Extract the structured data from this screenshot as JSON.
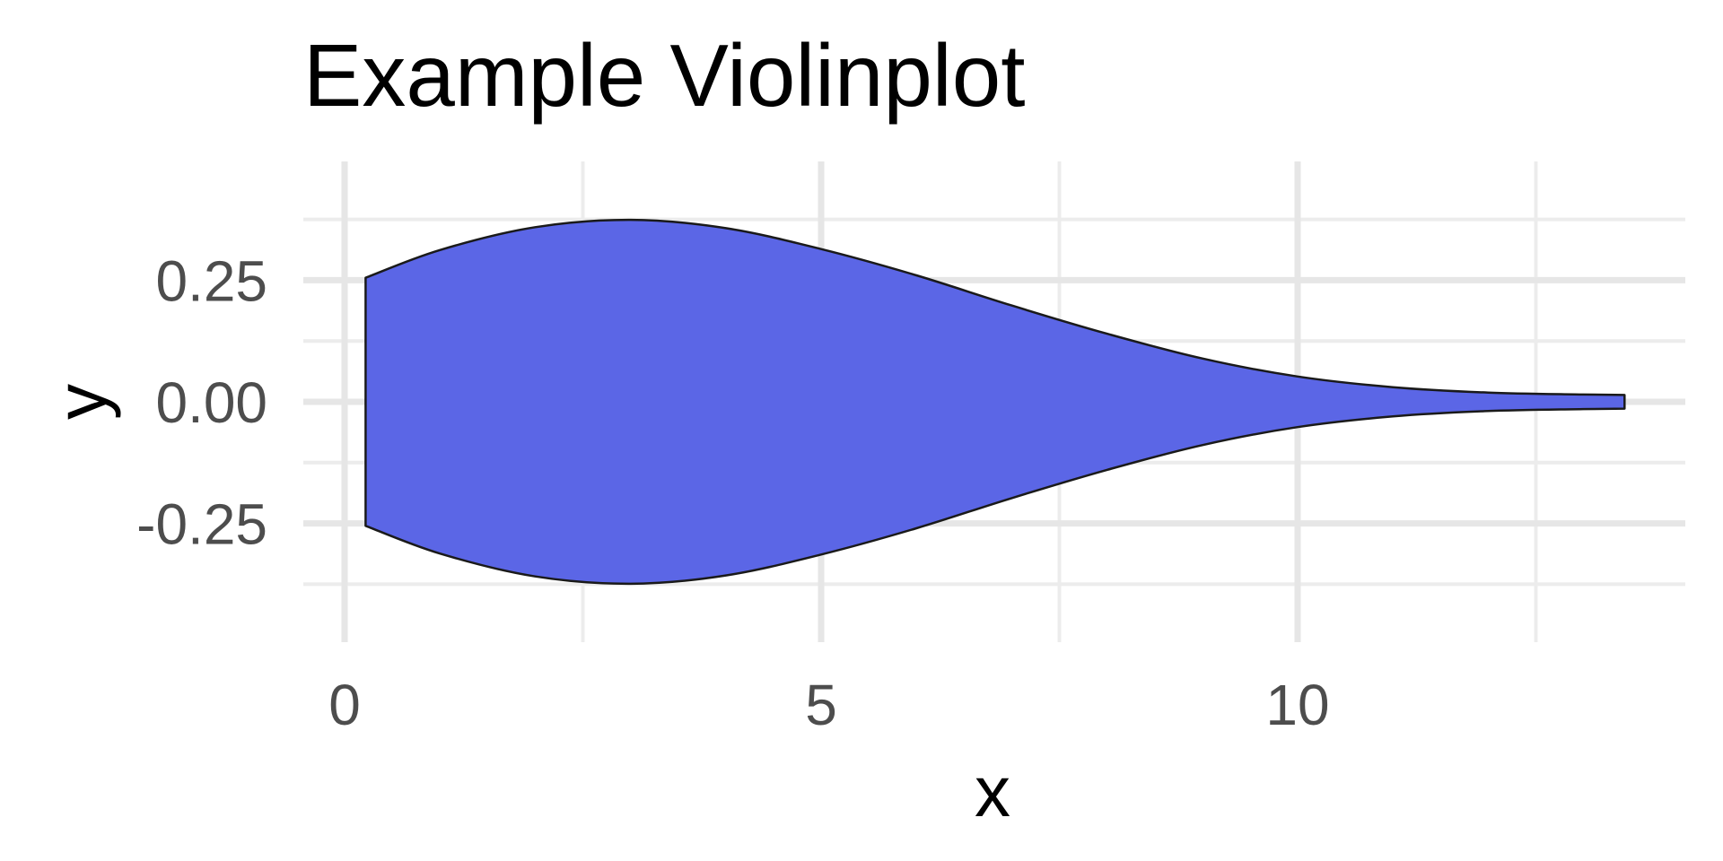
{
  "chart_data": {
    "type": "violin",
    "title": "Example Violinplot",
    "xlabel": "x",
    "ylabel": "y",
    "xlim": [
      -0.3,
      14.2
    ],
    "ylim": [
      -0.4,
      0.4
    ],
    "x_ticks": [
      0,
      5,
      10
    ],
    "y_ticks": [
      0.25,
      0.0,
      -0.25
    ],
    "x_tick_labels": [
      "0",
      "5",
      "10"
    ],
    "y_tick_labels": [
      "0.25",
      "0.00",
      "-0.25"
    ],
    "orientation": "horizontal",
    "center_y": 0,
    "fill_color": "#5b66e6",
    "outline_color": "#1a1a1a",
    "grid": true,
    "density_profile": {
      "x": [
        0.22,
        1.0,
        2.0,
        3.0,
        4.0,
        5.0,
        6.0,
        7.0,
        8.0,
        9.0,
        10.0,
        11.0,
        12.0,
        13.0,
        13.43
      ],
      "half_width": [
        0.255,
        0.312,
        0.359,
        0.374,
        0.357,
        0.314,
        0.26,
        0.198,
        0.14,
        0.089,
        0.052,
        0.03,
        0.019,
        0.015,
        0.014
      ]
    }
  }
}
